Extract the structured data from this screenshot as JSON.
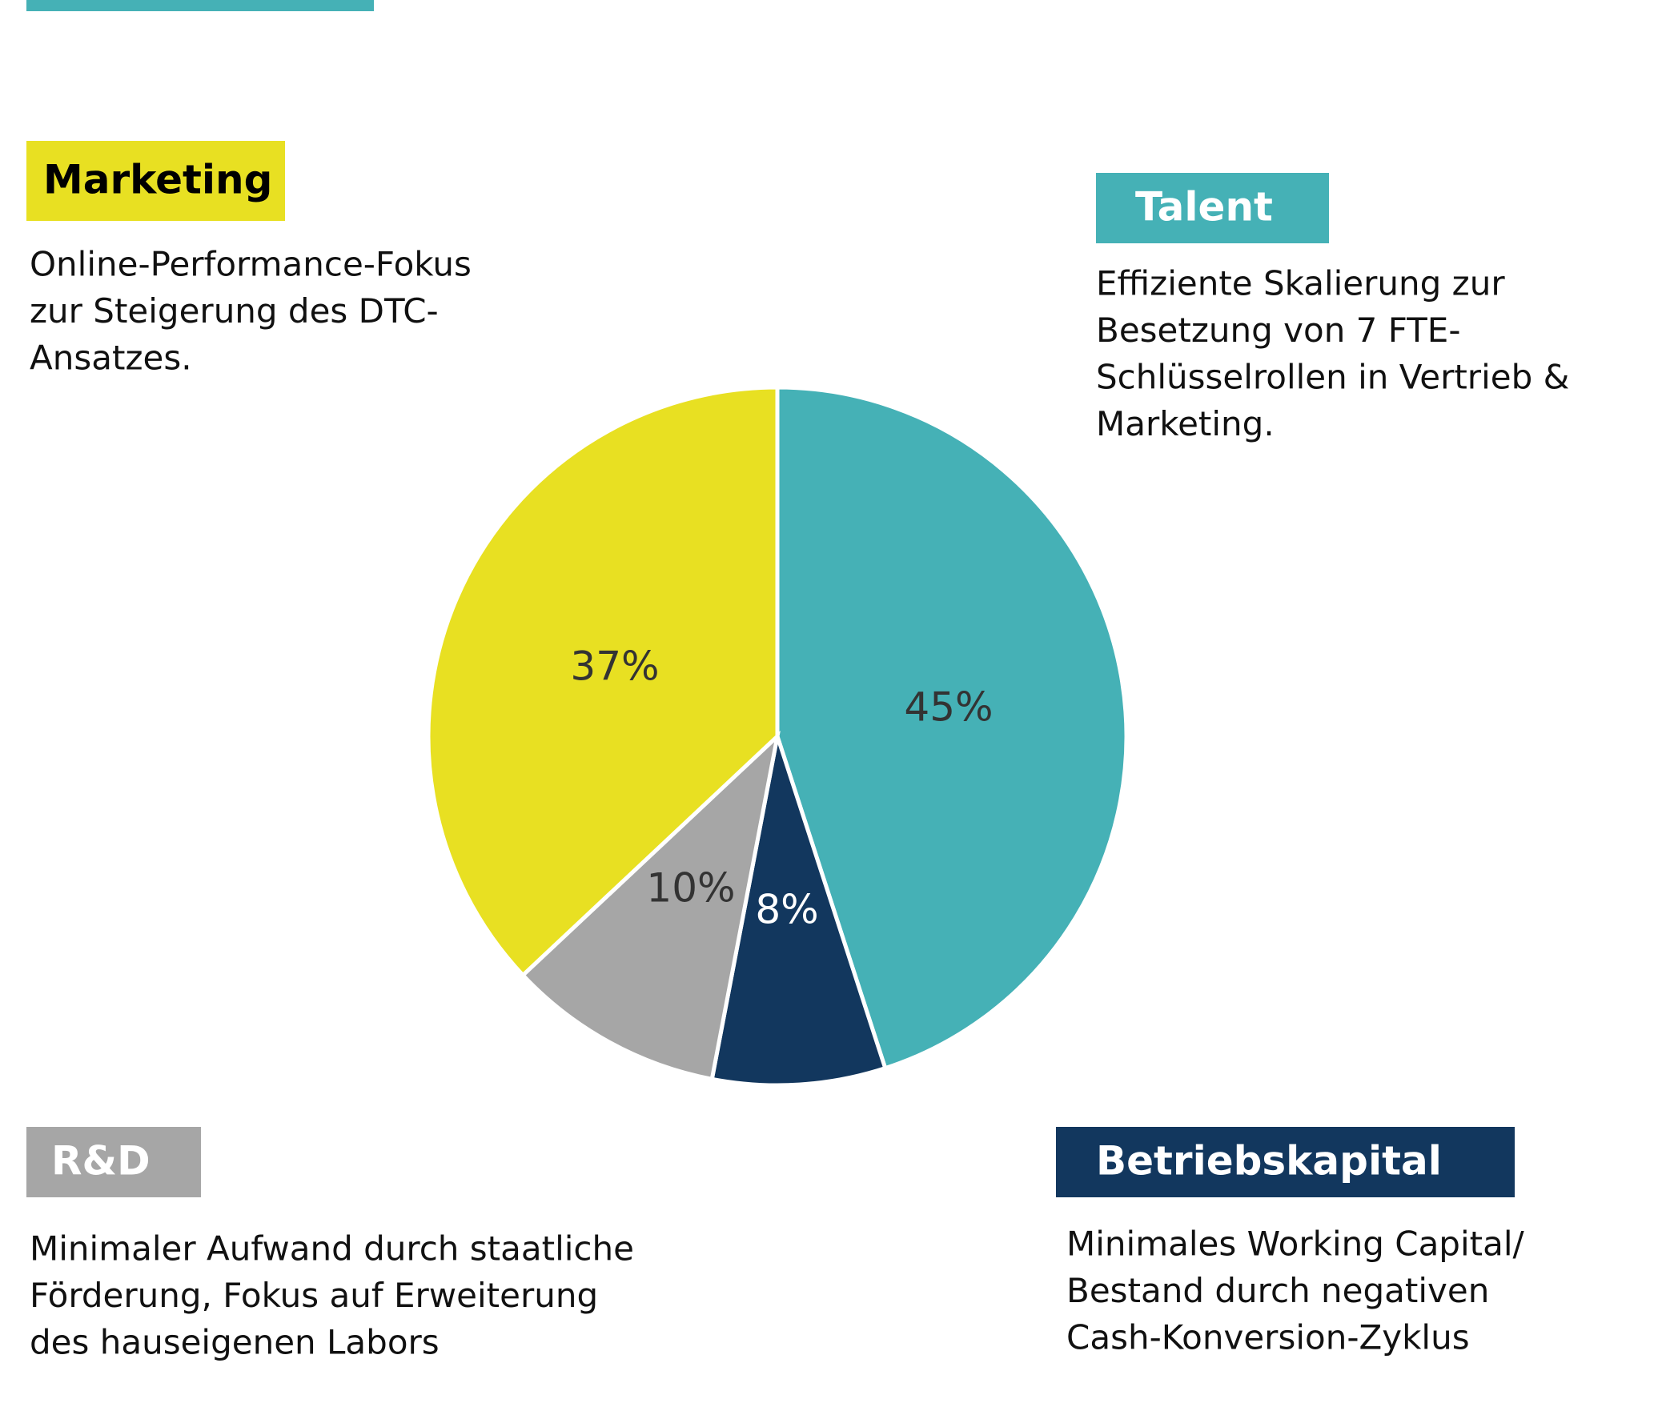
{
  "chart_data": {
    "type": "pie",
    "categories": [
      "Talent",
      "Betriebskapital",
      "R&D",
      "Marketing"
    ],
    "values": [
      45,
      8,
      10,
      37
    ],
    "value_labels": [
      "45%",
      "8%",
      "10%",
      "37%"
    ],
    "colors": [
      "#45b1b6",
      "#12375e",
      "#a6a6a6",
      "#e8e022"
    ],
    "descriptions": [
      [
        "Effiziente Skalierung zur",
        "Besetzung von 7 FTE-",
        "Schlüsselrollen in Vertrieb &",
        "Marketing."
      ],
      [
        "Minimales Working Capital/",
        "Bestand durch negativen",
        "Cash-Konversion-Zyklus"
      ],
      [
        "Minimaler Aufwand durch staatliche",
        "Förderung, Fokus auf Erweiterung",
        "des hauseigenen Labors"
      ],
      [
        "Online-Performance-Fokus",
        "zur Steigerung des DTC-",
        "Ansatzes."
      ]
    ]
  }
}
